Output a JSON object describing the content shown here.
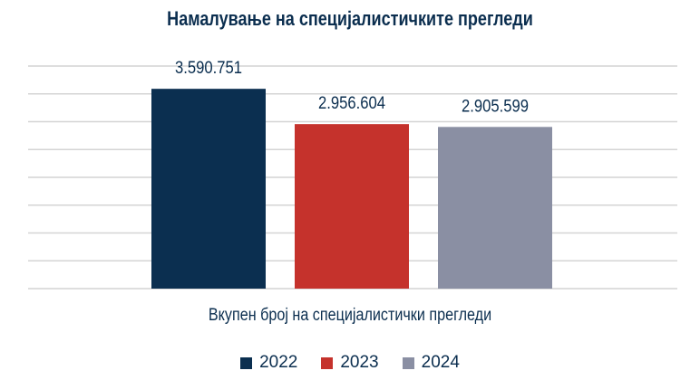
{
  "chart_data": {
    "type": "bar",
    "title": "Намалување на специјалистичките прегледи",
    "xlabel": "Вкупен број на специјалистички прегледи",
    "ylabel": "",
    "ylim": [
      0,
      4000000
    ],
    "ytick_step": 500000,
    "grid": true,
    "legend_position": "bottom",
    "categories": [
      "Вкупен број на специјалистички прегледи"
    ],
    "series": [
      {
        "name": "2022",
        "values": [
          3590751
        ],
        "label": "3.590.751",
        "color": "#0b2f50"
      },
      {
        "name": "2023",
        "values": [
          2956604
        ],
        "label": "2.956.604",
        "color": "#c5322c"
      },
      {
        "name": "2024",
        "values": [
          2905599
        ],
        "label": "2.905.599",
        "color": "#8a8fa3"
      }
    ]
  }
}
